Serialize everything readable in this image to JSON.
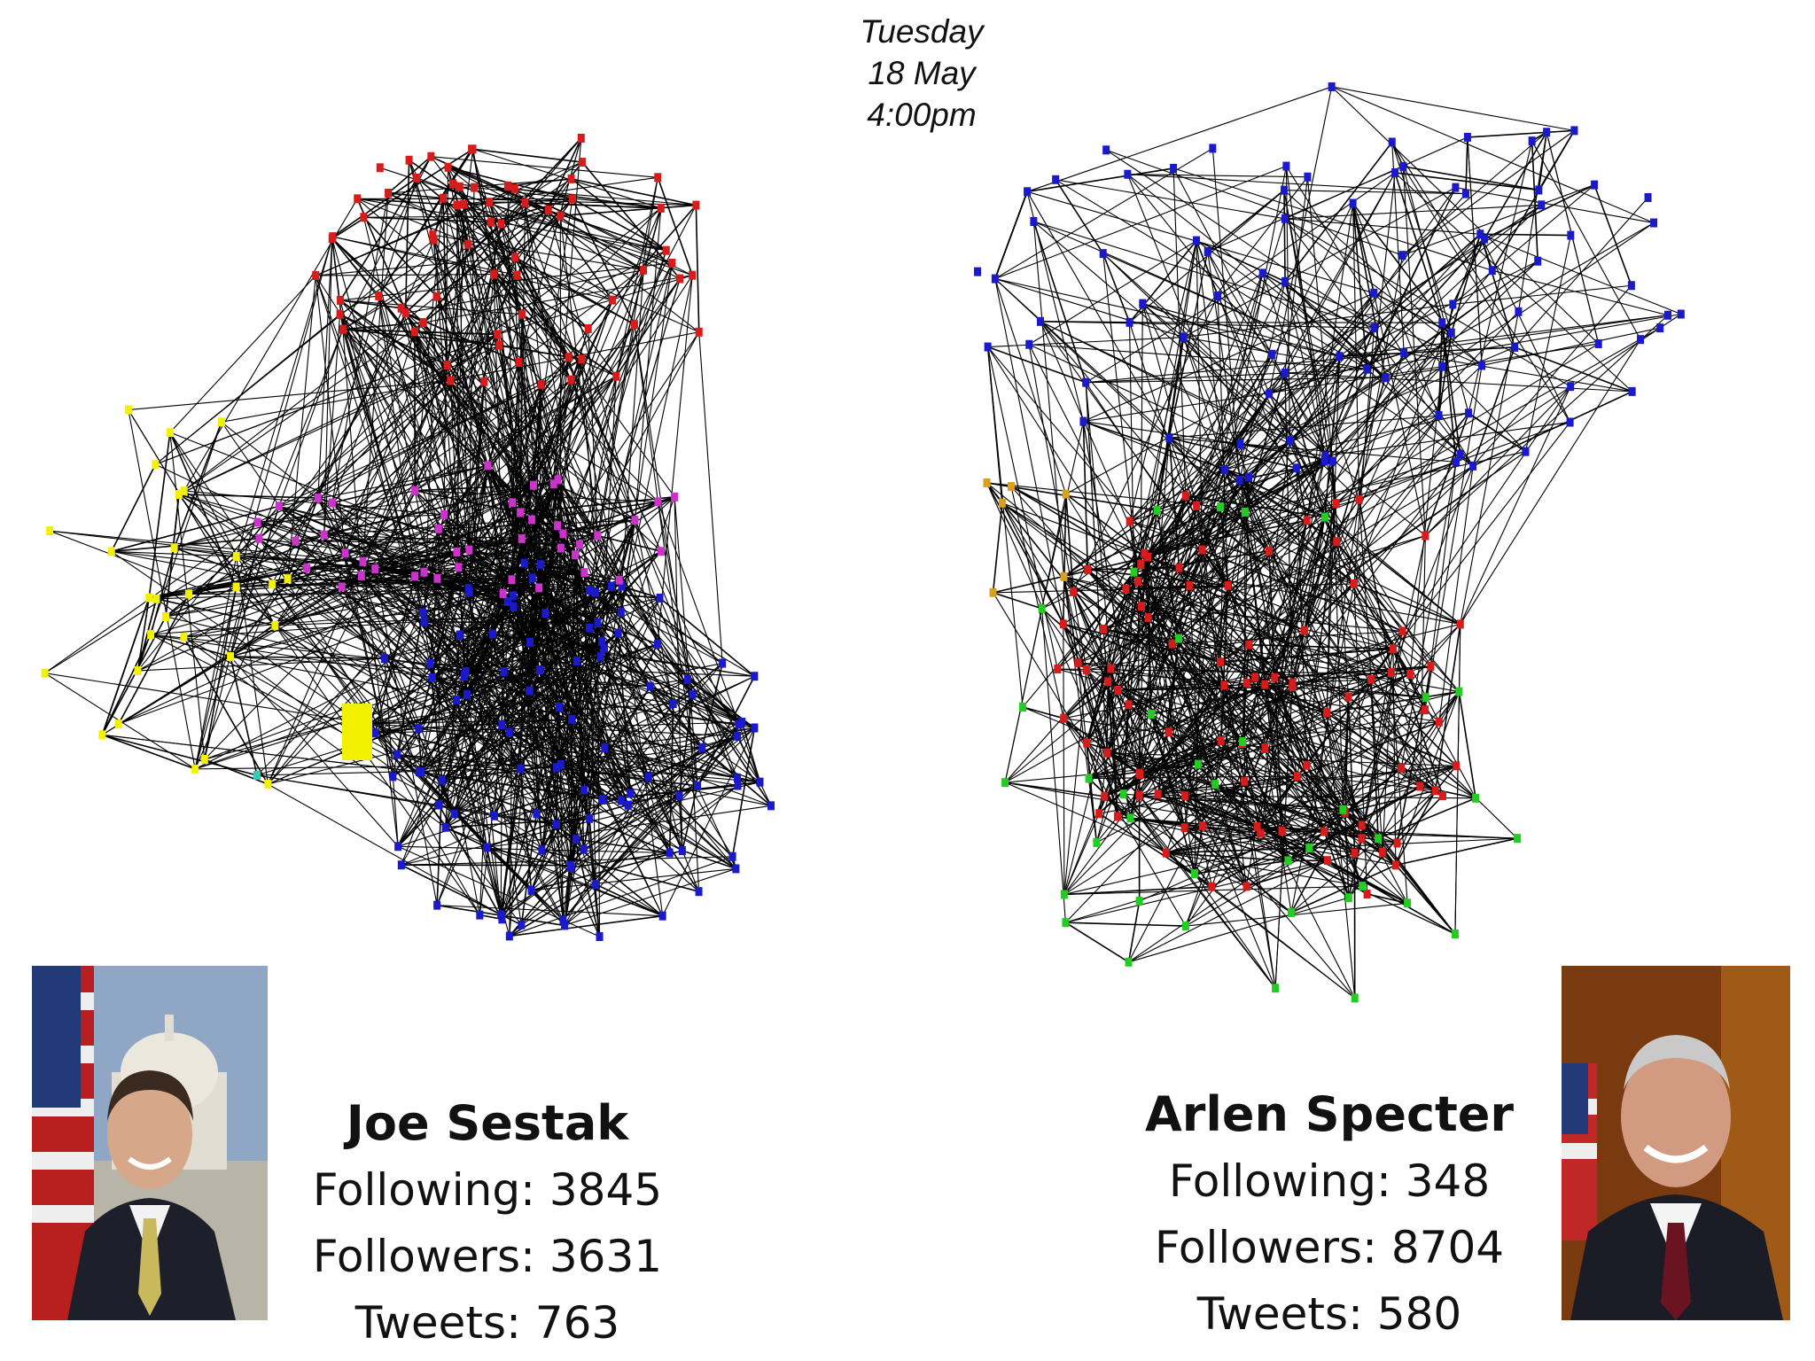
{
  "timestamp": {
    "day": "Tuesday",
    "date": "18 May",
    "time": "4:00pm"
  },
  "colors": {
    "edge": "#000000",
    "node_red": "#d81b1b",
    "node_blue": "#1a1acc",
    "node_magenta": "#cc33cc",
    "node_yellow": "#f2f200",
    "node_green": "#22cc22",
    "node_orange": "#d9a020",
    "node_cyan": "#33ccbb"
  },
  "candidates": [
    {
      "name": "Joe Sestak",
      "following_label": "Following: 3845",
      "followers_label": "Followers: 3631",
      "tweets_label": "Tweets: 763",
      "photo_icon": "portrait-photo-capitol-flag"
    },
    {
      "name": "Arlen Specter",
      "following_label": "Following: 348",
      "followers_label": "Followers: 8704",
      "tweets_label": "Tweets: 580",
      "photo_icon": "portrait-photo-flag"
    }
  ]
}
